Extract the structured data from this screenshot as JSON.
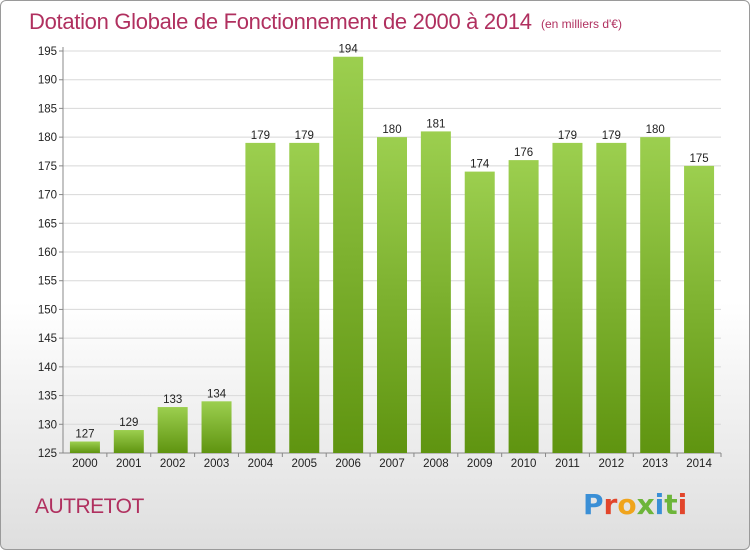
{
  "header": {
    "title": "Dotation Globale de Fonctionnement de 2000 à 2014",
    "unit": "(en milliers d'€)"
  },
  "footer": {
    "commune": "AUTRETOT",
    "brand": "Proxiti"
  },
  "colors": {
    "title": "#b0305f",
    "bar_light": "#9ccf4f",
    "bar_dark": "#5f9410",
    "grid": "#d8d8d8",
    "brand_letters": [
      "#3a8fd6",
      "#e2452b",
      "#f0a41c",
      "#6db53a",
      "#3a8fd6",
      "#6db53a",
      "#e2452b"
    ]
  },
  "chart_data": {
    "type": "bar",
    "title": "Dotation Globale de Fonctionnement de 2000 à 2014",
    "subtitle": "(en milliers d'€)",
    "xlabel": "",
    "ylabel": "",
    "categories": [
      "2000",
      "2001",
      "2002",
      "2003",
      "2004",
      "2005",
      "2006",
      "2007",
      "2008",
      "2009",
      "2010",
      "2011",
      "2012",
      "2013",
      "2014"
    ],
    "values": [
      127,
      129,
      133,
      134,
      179,
      179,
      194,
      180,
      181,
      174,
      176,
      179,
      179,
      180,
      175
    ],
    "ylim": [
      125,
      195
    ],
    "yticks": [
      125,
      130,
      135,
      140,
      145,
      150,
      155,
      160,
      165,
      170,
      175,
      180,
      185,
      190,
      195
    ],
    "grid": true,
    "legend": "none"
  }
}
